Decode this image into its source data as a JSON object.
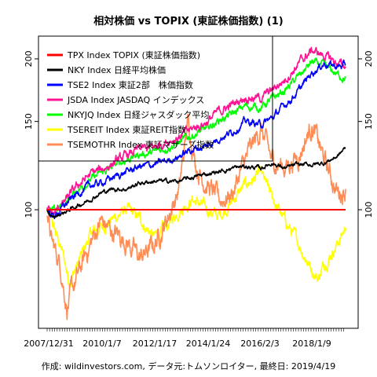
{
  "chart_data": {
    "type": "line",
    "title": "相対株価 vs TOPIX (東証株価指数) (1)",
    "footer": "作成: wildinvestors.com, データ元:トムソンロイター, 最終日: 2019/4/19",
    "y_scale": "log",
    "ylim": [
      58,
      222
    ],
    "yticks": [
      100,
      150,
      200
    ],
    "ytick_labels": [
      "100",
      "150",
      "200"
    ],
    "x_range": [
      "2007-12-31",
      "2019-04-19"
    ],
    "xtick_labels": [
      "2007/12/31",
      "2010/1/7",
      "2012/1/17",
      "2014/1/24",
      "2016/2/3",
      "2018/1/9"
    ],
    "grid": false,
    "legend_position": "top-left",
    "series": [
      {
        "name": "TPX Index TOPIX (東証株価指数)",
        "color": "#ff0000",
        "points": [
          [
            "2007-12-31",
            100
          ],
          [
            "2019-04-19",
            100
          ]
        ]
      },
      {
        "name": "NKY Index 日経平均株価",
        "color": "#000000",
        "points": [
          [
            "2007-12-31",
            100
          ],
          [
            "2008-03-01",
            96
          ],
          [
            "2008-09-01",
            99
          ],
          [
            "2009-01-01",
            101
          ],
          [
            "2009-07-01",
            104
          ],
          [
            "2010-01-07",
            108
          ],
          [
            "2010-07-01",
            110
          ],
          [
            "2011-01-01",
            110
          ],
          [
            "2011-07-01",
            113
          ],
          [
            "2012-01-17",
            114
          ],
          [
            "2012-07-01",
            114
          ],
          [
            "2013-01-01",
            114
          ],
          [
            "2013-07-01",
            116
          ],
          [
            "2014-01-24",
            118
          ],
          [
            "2014-07-01",
            119
          ],
          [
            "2015-01-01",
            121
          ],
          [
            "2015-07-01",
            122
          ],
          [
            "2016-02-03",
            121
          ],
          [
            "2016-07-01",
            124
          ],
          [
            "2017-01-01",
            121
          ],
          [
            "2017-07-01",
            123
          ],
          [
            "2018-01-09",
            123
          ],
          [
            "2018-07-01",
            124
          ],
          [
            "2019-01-01",
            128
          ],
          [
            "2019-04-19",
            133
          ]
        ]
      },
      {
        "name": "TSE2 Index 東証2部　株価指数",
        "color": "#0000ff",
        "points": [
          [
            "2007-12-31",
            100
          ],
          [
            "2008-04-01",
            97
          ],
          [
            "2008-10-01",
            103
          ],
          [
            "2009-03-01",
            108
          ],
          [
            "2009-09-01",
            112
          ],
          [
            "2010-01-07",
            113
          ],
          [
            "2010-07-01",
            116
          ],
          [
            "2011-01-01",
            119
          ],
          [
            "2011-07-01",
            122
          ],
          [
            "2012-01-17",
            123
          ],
          [
            "2012-07-01",
            125
          ],
          [
            "2013-01-01",
            128
          ],
          [
            "2013-07-01",
            132
          ],
          [
            "2014-01-24",
            134
          ],
          [
            "2014-07-01",
            139
          ],
          [
            "2015-01-01",
            143
          ],
          [
            "2015-07-01",
            150
          ],
          [
            "2016-02-03",
            148
          ],
          [
            "2016-07-01",
            152
          ],
          [
            "2017-01-01",
            162
          ],
          [
            "2017-07-01",
            172
          ],
          [
            "2018-01-09",
            188
          ],
          [
            "2018-07-01",
            196
          ],
          [
            "2019-01-01",
            193
          ],
          [
            "2019-04-19",
            194
          ]
        ]
      },
      {
        "name": "JSDA Index JASDAQ インデックス",
        "color": "#ff1493",
        "points": [
          [
            "2007-12-31",
            100
          ],
          [
            "2008-04-01",
            98
          ],
          [
            "2008-10-01",
            105
          ],
          [
            "2009-03-01",
            112
          ],
          [
            "2009-09-01",
            118
          ],
          [
            "2010-01-07",
            120
          ],
          [
            "2010-07-01",
            124
          ],
          [
            "2011-01-01",
            128
          ],
          [
            "2011-07-01",
            132
          ],
          [
            "2012-01-17",
            133
          ],
          [
            "2012-07-01",
            137
          ],
          [
            "2013-01-01",
            140
          ],
          [
            "2013-07-01",
            145
          ],
          [
            "2014-01-24",
            150
          ],
          [
            "2014-07-01",
            157
          ],
          [
            "2015-01-01",
            162
          ],
          [
            "2015-07-01",
            168
          ],
          [
            "2016-02-03",
            167
          ],
          [
            "2016-07-01",
            173
          ],
          [
            "2017-01-01",
            182
          ],
          [
            "2017-07-01",
            195
          ],
          [
            "2018-01-09",
            208
          ],
          [
            "2018-07-01",
            203
          ],
          [
            "2019-01-01",
            196
          ],
          [
            "2019-04-19",
            193
          ]
        ]
      },
      {
        "name": "NKYJQ Index 日経ジャスダック平均",
        "color": "#00ff00",
        "points": [
          [
            "2007-12-31",
            100
          ],
          [
            "2008-04-01",
            99
          ],
          [
            "2008-10-01",
            104
          ],
          [
            "2009-03-01",
            110
          ],
          [
            "2009-09-01",
            115
          ],
          [
            "2010-01-07",
            118
          ],
          [
            "2010-07-01",
            122
          ],
          [
            "2011-01-01",
            126
          ],
          [
            "2011-07-01",
            129
          ],
          [
            "2012-01-17",
            130
          ],
          [
            "2012-07-01",
            133
          ],
          [
            "2013-01-01",
            136
          ],
          [
            "2013-07-01",
            141
          ],
          [
            "2014-01-24",
            145
          ],
          [
            "2014-07-01",
            151
          ],
          [
            "2015-01-01",
            155
          ],
          [
            "2015-07-01",
            161
          ],
          [
            "2016-02-03",
            160
          ],
          [
            "2016-07-01",
            166
          ],
          [
            "2017-01-01",
            173
          ],
          [
            "2017-07-01",
            184
          ],
          [
            "2018-01-09",
            197
          ],
          [
            "2018-07-01",
            193
          ],
          [
            "2019-01-01",
            186
          ],
          [
            "2019-04-19",
            183
          ]
        ]
      },
      {
        "name": "TSEREIT Index 東証REIT指数",
        "color": "#ffff00",
        "points": [
          [
            "2007-12-31",
            100
          ],
          [
            "2008-04-01",
            92
          ],
          [
            "2008-08-01",
            82
          ],
          [
            "2008-11-01",
            72
          ],
          [
            "2009-03-01",
            78
          ],
          [
            "2009-09-01",
            90
          ],
          [
            "2010-01-07",
            92
          ],
          [
            "2010-07-01",
            96
          ],
          [
            "2011-01-01",
            100
          ],
          [
            "2011-07-01",
            96
          ],
          [
            "2012-01-17",
            88
          ],
          [
            "2012-07-01",
            92
          ],
          [
            "2013-01-01",
            100
          ],
          [
            "2013-07-01",
            105
          ],
          [
            "2014-01-24",
            100
          ],
          [
            "2014-07-01",
            97
          ],
          [
            "2015-01-01",
            104
          ],
          [
            "2015-07-01",
            112
          ],
          [
            "2016-02-03",
            118
          ],
          [
            "2016-07-01",
            106
          ],
          [
            "2017-01-01",
            95
          ],
          [
            "2017-07-01",
            86
          ],
          [
            "2018-01-09",
            76
          ],
          [
            "2018-04-01",
            73
          ],
          [
            "2018-07-01",
            78
          ],
          [
            "2019-01-01",
            86
          ],
          [
            "2019-04-19",
            92
          ]
        ]
      },
      {
        "name": "TSEMOTHR Index 東証マザーズ指数",
        "color": "#ff8c55",
        "points": [
          [
            "2007-12-31",
            100
          ],
          [
            "2008-03-01",
            86
          ],
          [
            "2008-07-01",
            78
          ],
          [
            "2008-10-01",
            64
          ],
          [
            "2009-02-01",
            72
          ],
          [
            "2009-07-01",
            82
          ],
          [
            "2010-01-07",
            95
          ],
          [
            "2010-07-01",
            90
          ],
          [
            "2011-01-01",
            87
          ],
          [
            "2011-07-01",
            80
          ],
          [
            "2012-01-17",
            85
          ],
          [
            "2012-07-01",
            95
          ],
          [
            "2013-01-01",
            110
          ],
          [
            "2013-05-01",
            150
          ],
          [
            "2013-09-01",
            122
          ],
          [
            "2014-01-24",
            112
          ],
          [
            "2014-07-01",
            104
          ],
          [
            "2015-01-01",
            108
          ],
          [
            "2015-07-01",
            125
          ],
          [
            "2016-02-03",
            145
          ],
          [
            "2016-07-01",
            125
          ],
          [
            "2017-01-01",
            122
          ],
          [
            "2017-07-01",
            128
          ],
          [
            "2018-01-09",
            148
          ],
          [
            "2018-07-01",
            125
          ],
          [
            "2019-01-01",
            108
          ],
          [
            "2019-04-19",
            110
          ]
        ]
      }
    ]
  }
}
